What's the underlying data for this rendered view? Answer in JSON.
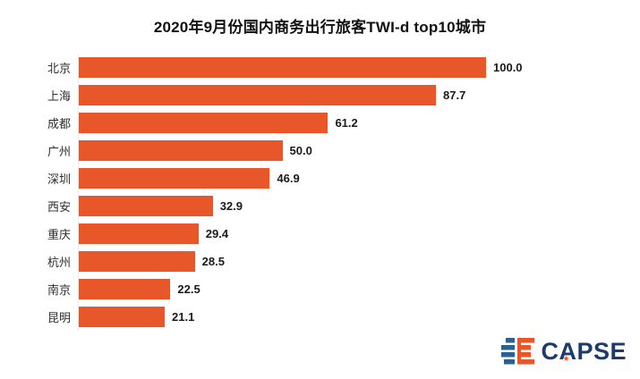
{
  "title": "2020年9月份国内商务出行旅客TWI-d top10城市",
  "chart_data": {
    "type": "bar",
    "orientation": "horizontal",
    "title": "2020年9月份国内商务出行旅客TWI-d top10城市",
    "categories": [
      "北京",
      "上海",
      "成都",
      "广州",
      "深圳",
      "西安",
      "重庆",
      "杭州",
      "南京",
      "昆明"
    ],
    "values": [
      100.0,
      87.7,
      61.2,
      50.0,
      46.9,
      32.9,
      29.4,
      28.5,
      22.5,
      21.1
    ],
    "value_labels": [
      "100.0",
      "87.7",
      "61.2",
      "50.0",
      "46.9",
      "32.9",
      "29.4",
      "28.5",
      "22.5",
      "21.1"
    ],
    "xlabel": "",
    "ylabel": "",
    "xlim": [
      0,
      100
    ],
    "grid": false,
    "data_labels": true,
    "legend": "none",
    "bar_color": "#E8572A"
  },
  "logo": {
    "text": "CAPSE",
    "star": "★",
    "colors": {
      "navy": "#1C3C6E",
      "blue": "#2D5F8F",
      "orange": "#E8572A"
    }
  }
}
